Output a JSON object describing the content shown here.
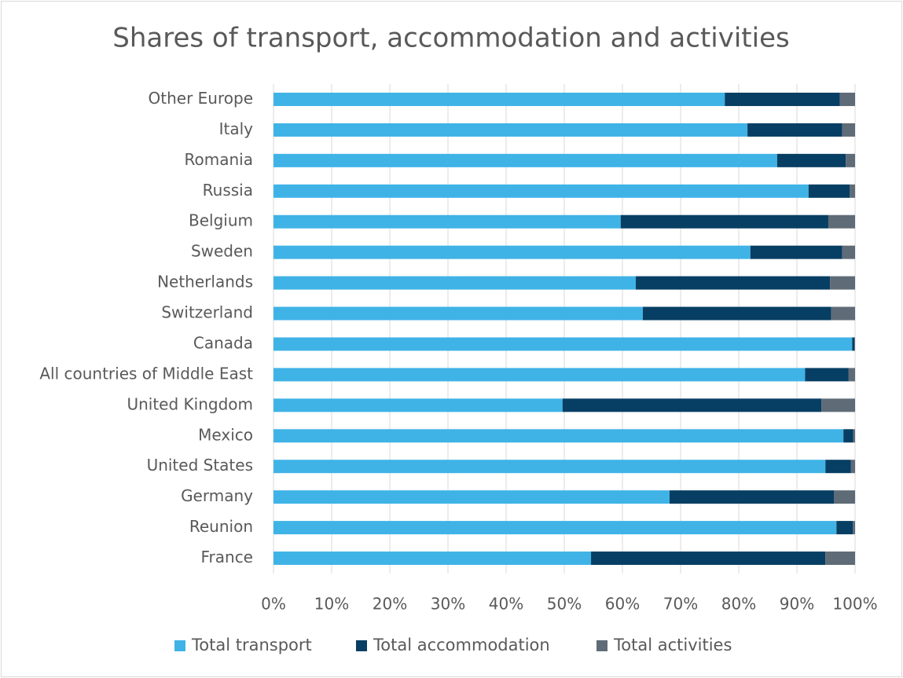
{
  "chart_data": {
    "type": "stacked-bar-horizontal",
    "title": "Shares of transport, accommodation and activities",
    "categories": [
      "Other Europe",
      "Italy",
      "Romania",
      "Russia",
      "Belgium",
      "Sweden",
      "Netherlands",
      "Switzerland",
      "Canada",
      "All countries of Middle East",
      "United Kingdom",
      "Mexico",
      "United States",
      "Germany",
      "Reunion",
      "France"
    ],
    "series": [
      {
        "name": "Total transport",
        "color": "#3fb3e6",
        "values": [
          77.6,
          81.5,
          86.6,
          92.0,
          59.7,
          82.0,
          62.3,
          63.5,
          99.5,
          91.4,
          49.7,
          98.0,
          94.9,
          68.1,
          96.8,
          54.6
        ]
      },
      {
        "name": "Total accommodation",
        "color": "#073e63",
        "values": [
          19.8,
          16.3,
          11.8,
          7.1,
          35.7,
          15.8,
          33.4,
          32.4,
          0.4,
          7.5,
          44.5,
          1.7,
          4.4,
          28.3,
          2.8,
          40.3
        ]
      },
      {
        "name": "Total activities",
        "color": "#5f6b77",
        "values": [
          2.6,
          2.2,
          1.6,
          0.9,
          4.6,
          2.2,
          4.3,
          4.1,
          0.1,
          1.1,
          5.8,
          0.3,
          0.7,
          3.6,
          0.4,
          5.1
        ]
      }
    ],
    "xlim": [
      0,
      100
    ],
    "xticks": [
      {
        "value": 0,
        "label": "0%"
      },
      {
        "value": 10,
        "label": "10%"
      },
      {
        "value": 20,
        "label": "20%"
      },
      {
        "value": 30,
        "label": "30%"
      },
      {
        "value": 40,
        "label": "40%"
      },
      {
        "value": 50,
        "label": "50%"
      },
      {
        "value": 60,
        "label": "60%"
      },
      {
        "value": 70,
        "label": "70%"
      },
      {
        "value": 80,
        "label": "80%"
      },
      {
        "value": 90,
        "label": "90%"
      },
      {
        "value": 100,
        "label": "100%"
      }
    ],
    "grid": true,
    "legend": "bottom"
  }
}
